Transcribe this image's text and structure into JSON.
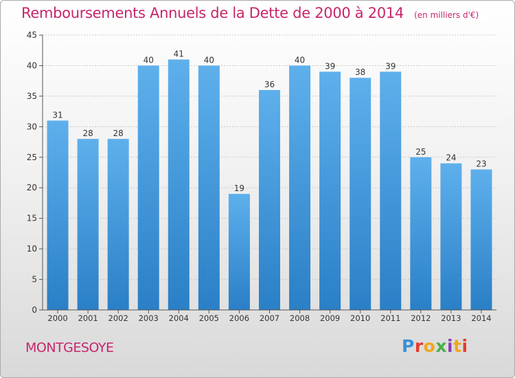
{
  "header": {
    "title": "Remboursements Annuels de la Dette de 2000 à 2014",
    "unit": "(en milliers d'€)"
  },
  "footer": {
    "commune": "MONTGESOYE",
    "logo_text": "Proxiti"
  },
  "colors": {
    "title": "#c8256a",
    "bar_top": "#5eb0ec",
    "bar_bottom": "#2a7fc6",
    "axis": "#555555",
    "grid": "#c9c9c9"
  },
  "chart_data": {
    "type": "bar",
    "categories": [
      "2000",
      "2001",
      "2002",
      "2003",
      "2004",
      "2005",
      "2006",
      "2007",
      "2008",
      "2009",
      "2010",
      "2011",
      "2012",
      "2013",
      "2014"
    ],
    "values": [
      31,
      28,
      28,
      40,
      41,
      40,
      19,
      36,
      40,
      39,
      38,
      39,
      25,
      24,
      23
    ],
    "title": "Remboursements Annuels de la Dette de 2000 à 2014",
    "subtitle": "(en milliers d'€)",
    "xlabel": "",
    "ylabel": "",
    "ylim": [
      0,
      45
    ],
    "yticks": [
      0,
      5,
      10,
      15,
      20,
      25,
      30,
      35,
      40,
      45
    ],
    "grid": true,
    "data_labels": true
  }
}
